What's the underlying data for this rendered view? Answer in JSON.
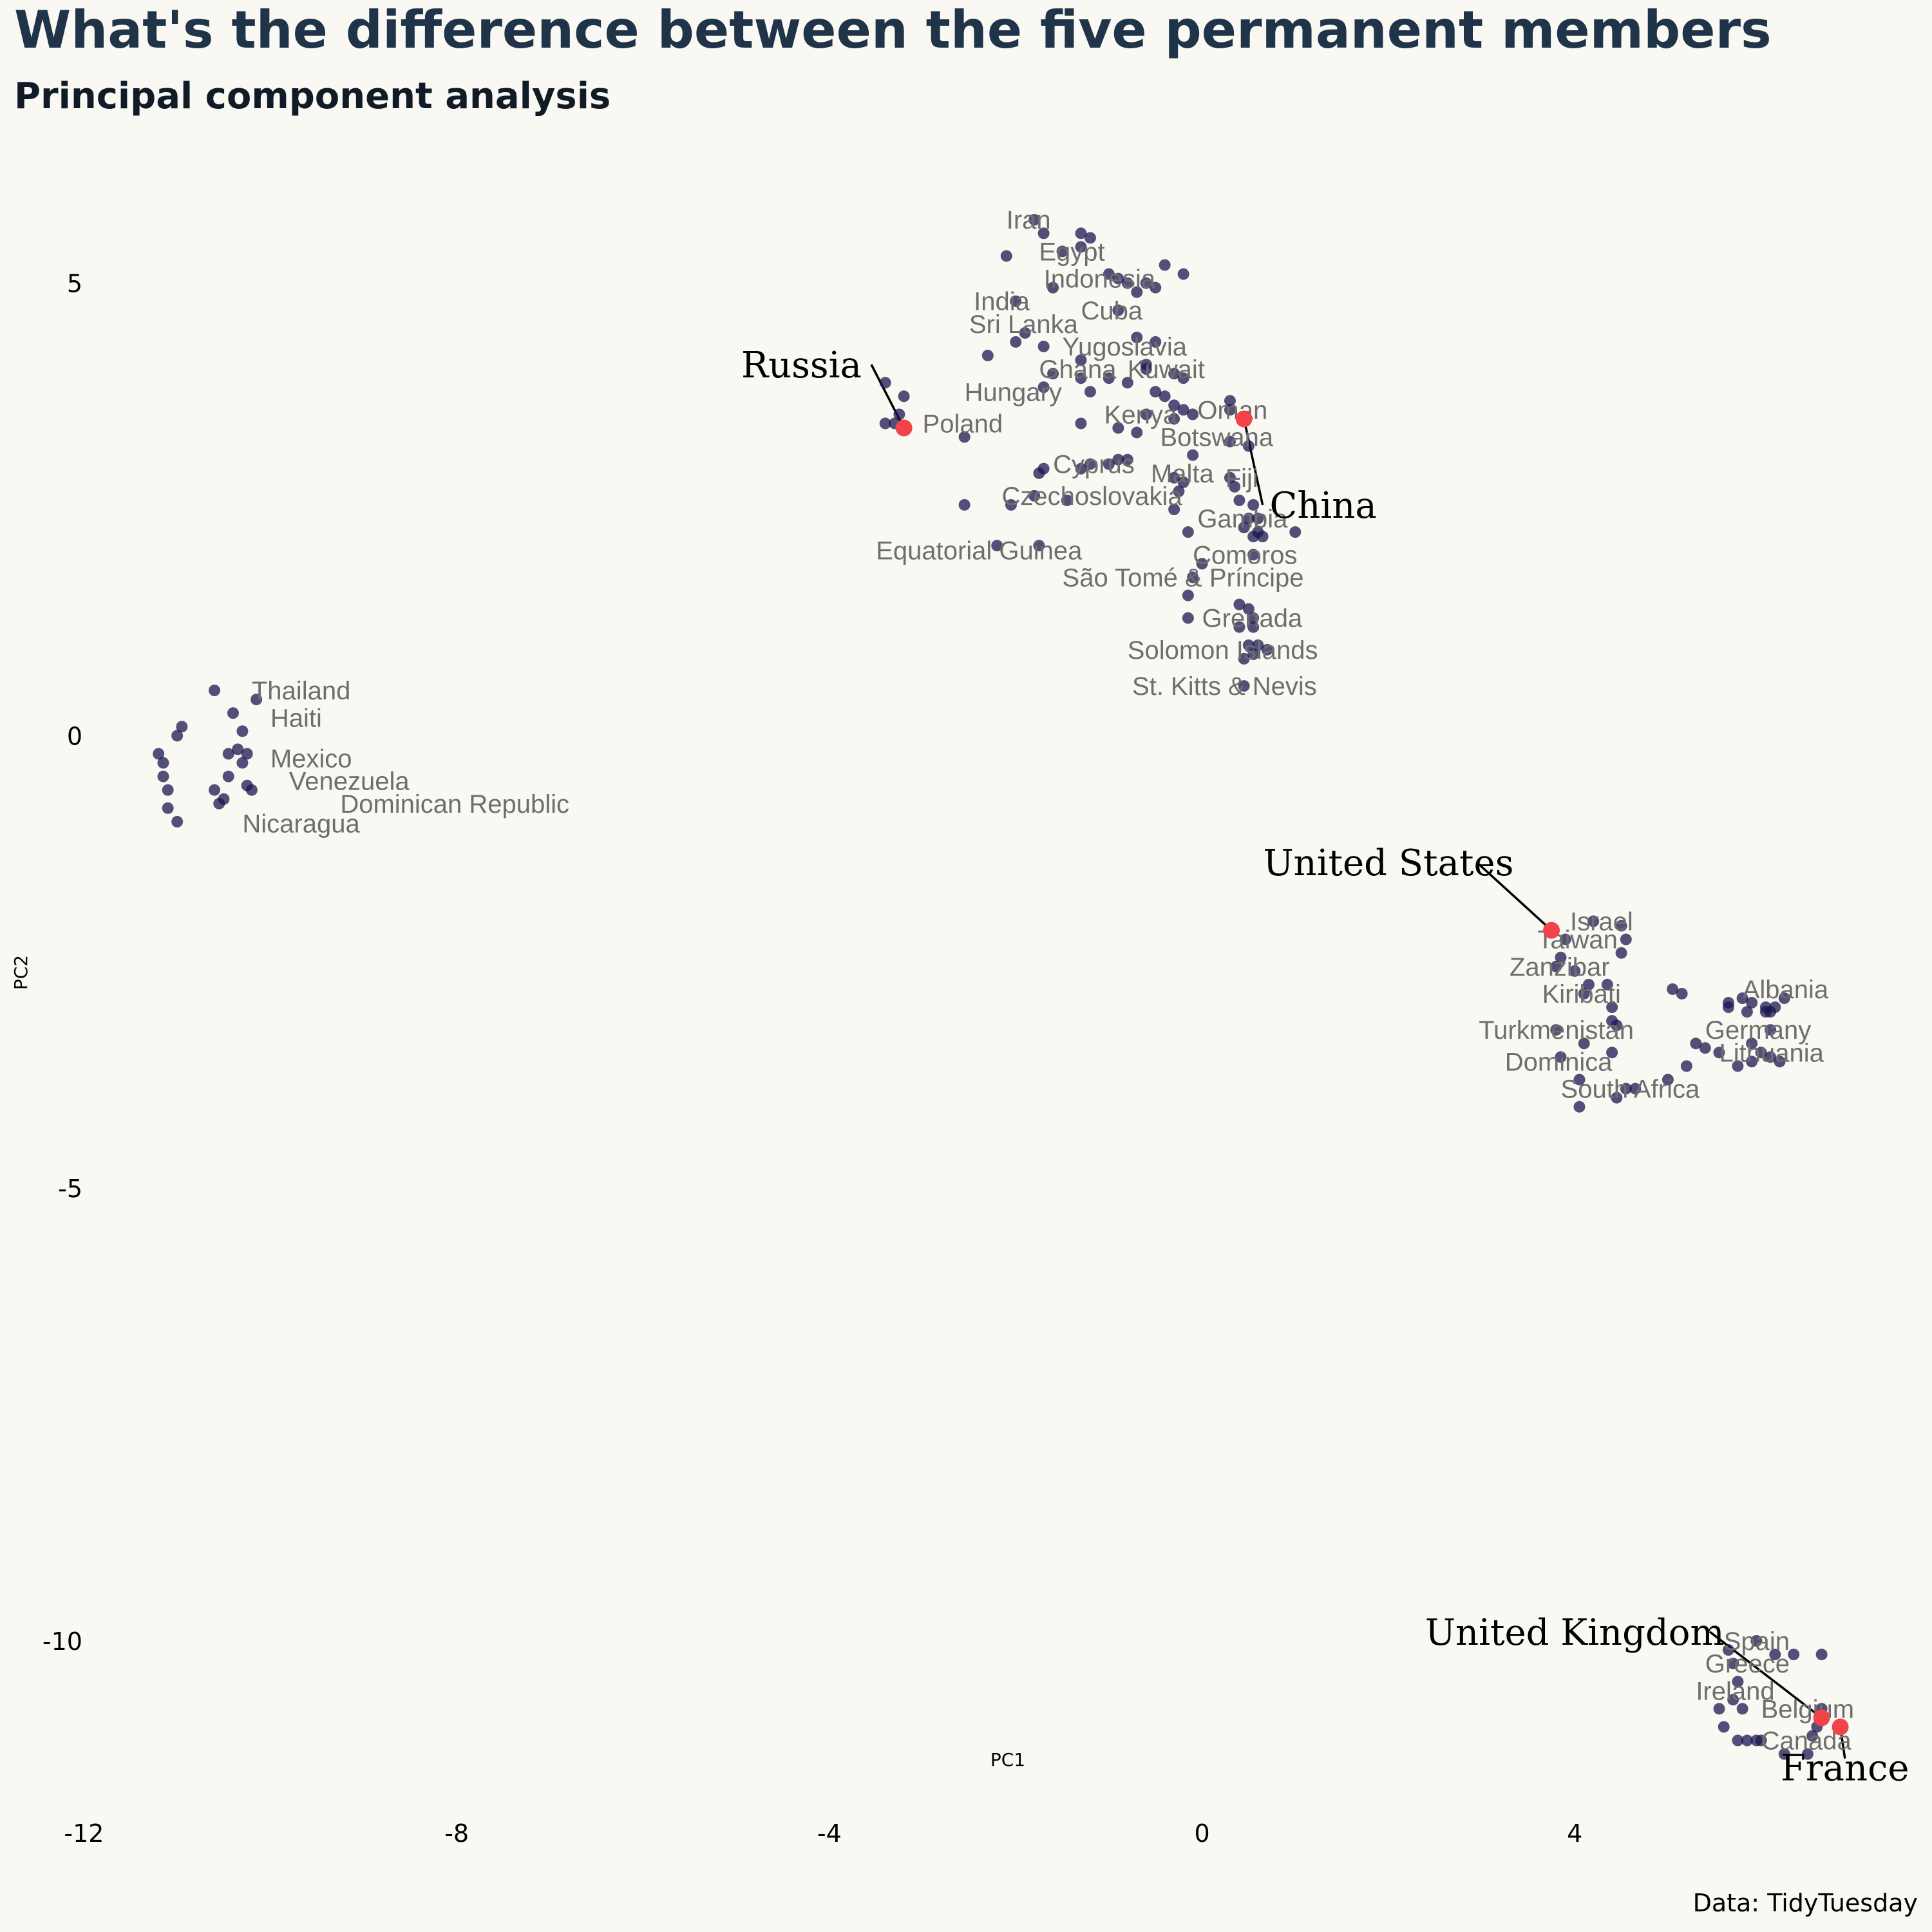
{
  "chart_data": {
    "type": "scatter",
    "title": "What's the difference between the five permanent members",
    "subtitle": "Principal component analysis",
    "xlabel": "PC1",
    "ylabel": "PC2",
    "caption": "Data: TidyTuesday",
    "xlim": [
      -12.1,
      7.8
    ],
    "ylim": [
      -11.9,
      6.1
    ],
    "xticks": [
      -12,
      -8,
      -4,
      0,
      4
    ],
    "yticks": [
      5,
      0,
      -5,
      -10
    ],
    "grid": false,
    "colors": {
      "background": "#faf8f2",
      "points": "#1a174f",
      "highlight": "#f2434b",
      "title": "#1f3349"
    },
    "points": [
      [
        -1.8,
        5.7
      ],
      [
        -1.7,
        5.55
      ],
      [
        -1.3,
        5.55
      ],
      [
        -1.2,
        5.5
      ],
      [
        -1.3,
        5.4
      ],
      [
        -1.5,
        5.35
      ],
      [
        -2.1,
        5.3
      ],
      [
        -1.0,
        5.1
      ],
      [
        -0.9,
        5.05
      ],
      [
        -0.8,
        5.0
      ],
      [
        -0.6,
        5.0
      ],
      [
        -0.5,
        4.95
      ],
      [
        -0.4,
        5.2
      ],
      [
        -0.2,
        5.1
      ],
      [
        -0.7,
        4.9
      ],
      [
        -1.6,
        4.95
      ],
      [
        -2.0,
        4.8
      ],
      [
        -0.9,
        4.7
      ],
      [
        -1.9,
        4.45
      ],
      [
        -2.0,
        4.35
      ],
      [
        -0.7,
        4.4
      ],
      [
        -0.5,
        4.35
      ],
      [
        -2.3,
        4.2
      ],
      [
        -1.7,
        4.3
      ],
      [
        -1.3,
        4.15
      ],
      [
        -0.6,
        4.1
      ],
      [
        -0.6,
        4.05
      ],
      [
        -1.6,
        4.0
      ],
      [
        -1.3,
        3.95
      ],
      [
        -1.0,
        3.95
      ],
      [
        -0.8,
        3.9
      ],
      [
        -0.3,
        4.0
      ],
      [
        -0.2,
        3.95
      ],
      [
        -0.5,
        3.8
      ],
      [
        -1.7,
        3.85
      ],
      [
        -1.2,
        3.8
      ],
      [
        -0.4,
        3.75
      ],
      [
        -0.3,
        3.65
      ],
      [
        -0.2,
        3.6
      ],
      [
        -0.3,
        3.5
      ],
      [
        -0.6,
        3.55
      ],
      [
        -1.3,
        3.45
      ],
      [
        0.3,
        3.7
      ],
      [
        0.3,
        3.6
      ],
      [
        -0.1,
        3.55
      ],
      [
        -0.9,
        3.4
      ],
      [
        -0.7,
        3.35
      ],
      [
        0.3,
        3.25
      ],
      [
        0.5,
        3.2
      ],
      [
        -0.1,
        3.1
      ],
      [
        -0.8,
        3.05
      ],
      [
        -0.9,
        3.05
      ],
      [
        -1.2,
        3.0
      ],
      [
        -1.0,
        3.0
      ],
      [
        -1.3,
        2.95
      ],
      [
        -1.7,
        2.95
      ],
      [
        -1.75,
        2.9
      ],
      [
        -0.3,
        2.85
      ],
      [
        -0.2,
        2.8
      ],
      [
        0.3,
        2.85
      ],
      [
        0.35,
        2.75
      ],
      [
        -0.25,
        2.7
      ],
      [
        -1.45,
        2.6
      ],
      [
        -1.8,
        2.65
      ],
      [
        0.4,
        2.6
      ],
      [
        -2.55,
        2.55
      ],
      [
        -2.05,
        2.55
      ],
      [
        -0.3,
        2.5
      ],
      [
        0.55,
        2.55
      ],
      [
        0.5,
        2.4
      ],
      [
        0.6,
        2.4
      ],
      [
        0.45,
        2.3
      ],
      [
        0.6,
        2.25
      ],
      [
        0.55,
        2.2
      ],
      [
        0.65,
        2.2
      ],
      [
        1.0,
        2.25
      ],
      [
        -0.15,
        2.25
      ],
      [
        -2.2,
        2.1
      ],
      [
        -1.75,
        2.1
      ],
      [
        0.55,
        2.0
      ],
      [
        0.0,
        1.9
      ],
      [
        -0.1,
        1.75
      ],
      [
        -0.15,
        1.55
      ],
      [
        0.4,
        1.45
      ],
      [
        0.5,
        1.4
      ],
      [
        0.55,
        1.3
      ],
      [
        0.55,
        1.2
      ],
      [
        -0.15,
        1.3
      ],
      [
        0.4,
        1.2
      ],
      [
        0.5,
        1.0
      ],
      [
        0.6,
        1.0
      ],
      [
        0.7,
        0.95
      ],
      [
        0.55,
        0.9
      ],
      [
        0.45,
        0.85
      ],
      [
        0.45,
        0.55
      ],
      [
        -3.4,
        3.9
      ],
      [
        -3.2,
        3.75
      ],
      [
        -3.25,
        3.55
      ],
      [
        -3.4,
        3.45
      ],
      [
        -3.3,
        3.45
      ],
      [
        -2.55,
        3.3
      ],
      [
        -10.6,
        0.5
      ],
      [
        -10.15,
        0.4
      ],
      [
        -10.4,
        0.25
      ],
      [
        -10.95,
        0.1
      ],
      [
        -10.3,
        0.05
      ],
      [
        -11.0,
        0.0
      ],
      [
        -10.35,
        -0.15
      ],
      [
        -10.25,
        -0.2
      ],
      [
        -10.45,
        -0.2
      ],
      [
        -11.2,
        -0.2
      ],
      [
        -11.15,
        -0.3
      ],
      [
        -10.3,
        -0.3
      ],
      [
        -10.45,
        -0.45
      ],
      [
        -10.25,
        -0.55
      ],
      [
        -11.15,
        -0.45
      ],
      [
        -10.6,
        -0.6
      ],
      [
        -10.2,
        -0.6
      ],
      [
        -10.5,
        -0.7
      ],
      [
        -11.1,
        -0.6
      ],
      [
        -10.55,
        -0.75
      ],
      [
        -11.1,
        -0.8
      ],
      [
        -11.0,
        -0.95
      ],
      [
        4.2,
        -2.05
      ],
      [
        4.5,
        -2.1
      ],
      [
        4.55,
        -2.25
      ],
      [
        3.9,
        -2.25
      ],
      [
        4.5,
        -2.4
      ],
      [
        3.85,
        -2.45
      ],
      [
        3.8,
        -2.55
      ],
      [
        4.0,
        -2.6
      ],
      [
        4.35,
        -2.75
      ],
      [
        4.15,
        -2.75
      ],
      [
        4.1,
        -2.85
      ],
      [
        4.4,
        -3.0
      ],
      [
        4.4,
        -3.15
      ],
      [
        4.45,
        -3.2
      ],
      [
        3.8,
        -3.25
      ],
      [
        4.1,
        -3.4
      ],
      [
        4.4,
        -3.5
      ],
      [
        3.85,
        -3.55
      ],
      [
        4.05,
        -3.8
      ],
      [
        4.55,
        -3.9
      ],
      [
        4.65,
        -3.9
      ],
      [
        4.45,
        -4.0
      ],
      [
        4.05,
        -4.1
      ],
      [
        5.05,
        -2.8
      ],
      [
        5.15,
        -2.85
      ],
      [
        5.65,
        -2.95
      ],
      [
        5.8,
        -2.9
      ],
      [
        5.9,
        -2.95
      ],
      [
        6.05,
        -3.0
      ],
      [
        6.15,
        -3.0
      ],
      [
        6.25,
        -2.9
      ],
      [
        5.65,
        -3.0
      ],
      [
        5.85,
        -3.05
      ],
      [
        6.05,
        -3.05
      ],
      [
        6.1,
        -3.05
      ],
      [
        6.1,
        -3.25
      ],
      [
        5.9,
        -3.4
      ],
      [
        5.3,
        -3.4
      ],
      [
        5.4,
        -3.45
      ],
      [
        5.55,
        -3.5
      ],
      [
        6.0,
        -3.5
      ],
      [
        6.1,
        -3.55
      ],
      [
        6.2,
        -3.6
      ],
      [
        5.9,
        -3.6
      ],
      [
        5.75,
        -3.65
      ],
      [
        5.2,
        -3.65
      ],
      [
        5.0,
        -3.8
      ],
      [
        5.95,
        -10.0
      ],
      [
        5.65,
        -10.1
      ],
      [
        6.15,
        -10.15
      ],
      [
        6.35,
        -10.15
      ],
      [
        6.65,
        -10.15
      ],
      [
        5.7,
        -10.25
      ],
      [
        5.75,
        -10.45
      ],
      [
        5.7,
        -10.65
      ],
      [
        5.55,
        -10.75
      ],
      [
        5.8,
        -10.75
      ],
      [
        6.65,
        -10.75
      ],
      [
        5.6,
        -10.95
      ],
      [
        6.6,
        -10.95
      ],
      [
        6.55,
        -11.05
      ],
      [
        5.75,
        -11.1
      ],
      [
        5.85,
        -11.1
      ],
      [
        5.95,
        -11.1
      ],
      [
        6.0,
        -11.1
      ],
      [
        6.25,
        -11.25
      ],
      [
        6.5,
        -11.25
      ]
    ],
    "labels": [
      {
        "text": "Iran",
        "x": -2.1,
        "y": 5.7
      },
      {
        "text": "Egypt",
        "x": -1.75,
        "y": 5.35
      },
      {
        "text": "Indonesia",
        "x": -1.7,
        "y": 5.05
      },
      {
        "text": "India",
        "x": -2.45,
        "y": 4.8
      },
      {
        "text": "Cuba",
        "x": -1.3,
        "y": 4.7
      },
      {
        "text": "Sri Lanka",
        "x": -2.5,
        "y": 4.55
      },
      {
        "text": "Yugoslavia",
        "x": -1.5,
        "y": 4.3
      },
      {
        "text": "Ghana",
        "x": -1.75,
        "y": 4.05
      },
      {
        "text": "Kuwait",
        "x": -0.8,
        "y": 4.05
      },
      {
        "text": "Hungary",
        "x": -2.55,
        "y": 3.8
      },
      {
        "text": "Kenya",
        "x": -1.05,
        "y": 3.55
      },
      {
        "text": "Oman",
        "x": -0.05,
        "y": 3.6
      },
      {
        "text": "Poland",
        "x": -3.0,
        "y": 3.45
      },
      {
        "text": "Botswana",
        "x": -0.45,
        "y": 3.3
      },
      {
        "text": "Cyprus",
        "x": -1.6,
        "y": 3.0
      },
      {
        "text": "Malta",
        "x": -0.55,
        "y": 2.9
      },
      {
        "text": "Fiji",
        "x": 0.25,
        "y": 2.85
      },
      {
        "text": "Czechoslovakia",
        "x": -2.15,
        "y": 2.65
      },
      {
        "text": "Gambia",
        "x": -0.05,
        "y": 2.4
      },
      {
        "text": "Equatorial Guinea",
        "x": -3.5,
        "y": 2.05
      },
      {
        "text": "Comoros",
        "x": -0.1,
        "y": 2.0
      },
      {
        "text": "São Tomé & Príncipe",
        "x": -1.5,
        "y": 1.75
      },
      {
        "text": "Grenada",
        "x": 0.0,
        "y": 1.3
      },
      {
        "text": "Solomon Islands",
        "x": -0.8,
        "y": 0.95
      },
      {
        "text": "St. Kitts & Nevis",
        "x": -0.75,
        "y": 0.55
      },
      {
        "text": "Thailand",
        "x": -10.2,
        "y": 0.5
      },
      {
        "text": "Haiti",
        "x": -10.0,
        "y": 0.2
      },
      {
        "text": "Mexico",
        "x": -10.0,
        "y": -0.25
      },
      {
        "text": "Venezuela",
        "x": -9.8,
        "y": -0.5
      },
      {
        "text": "Dominican Republic",
        "x": -9.25,
        "y": -0.75
      },
      {
        "text": "Nicaragua",
        "x": -10.3,
        "y": -0.97
      },
      {
        "text": "Israel",
        "x": 3.95,
        "y": -2.05
      },
      {
        "text": "Taiwan",
        "x": 3.6,
        "y": -2.25
      },
      {
        "text": "Zanzibar",
        "x": 3.3,
        "y": -2.55
      },
      {
        "text": "Kiribati",
        "x": 3.65,
        "y": -2.85
      },
      {
        "text": "Albania",
        "x": 5.8,
        "y": -2.8
      },
      {
        "text": "Germany",
        "x": 5.4,
        "y": -3.25
      },
      {
        "text": "Turkmenistan",
        "x": 2.97,
        "y": -3.25
      },
      {
        "text": "Lithuania",
        "x": 5.55,
        "y": -3.5
      },
      {
        "text": "Dominica",
        "x": 3.25,
        "y": -3.6
      },
      {
        "text": "South Africa",
        "x": 3.85,
        "y": -3.9
      },
      {
        "text": "Spain",
        "x": 5.6,
        "y": -10.0
      },
      {
        "text": "Greece",
        "x": 5.4,
        "y": -10.25
      },
      {
        "text": "Ireland",
        "x": 5.3,
        "y": -10.55
      },
      {
        "text": "Belgium",
        "x": 6.0,
        "y": -10.75
      },
      {
        "text": "Canada",
        "x": 6.0,
        "y": -11.1
      }
    ],
    "highlights": [
      {
        "text": "Russia",
        "x": -3.2,
        "y": 3.4,
        "lx": -4.3,
        "ly": 4.1,
        "ex": -3.55,
        "ey": 4.1
      },
      {
        "text": "China",
        "x": 0.45,
        "y": 3.5,
        "lx": 1.3,
        "ly": 2.55,
        "ex": 0.65,
        "ey": 2.55
      },
      {
        "text": "United States",
        "x": 3.75,
        "y": -2.15,
        "lx": 2.0,
        "ly": -1.4,
        "ex": 2.95,
        "ey": -1.4
      },
      {
        "text": "United Kingdom",
        "x": 6.65,
        "y": -10.85,
        "lx": 4.0,
        "ly": -9.9,
        "ex": 5.45,
        "ey": -9.9
      },
      {
        "text": "France",
        "x": 6.85,
        "y": -10.95,
        "lx": 6.9,
        "ly": -11.4,
        "ex": 6.9,
        "ey": -11.3
      }
    ]
  }
}
